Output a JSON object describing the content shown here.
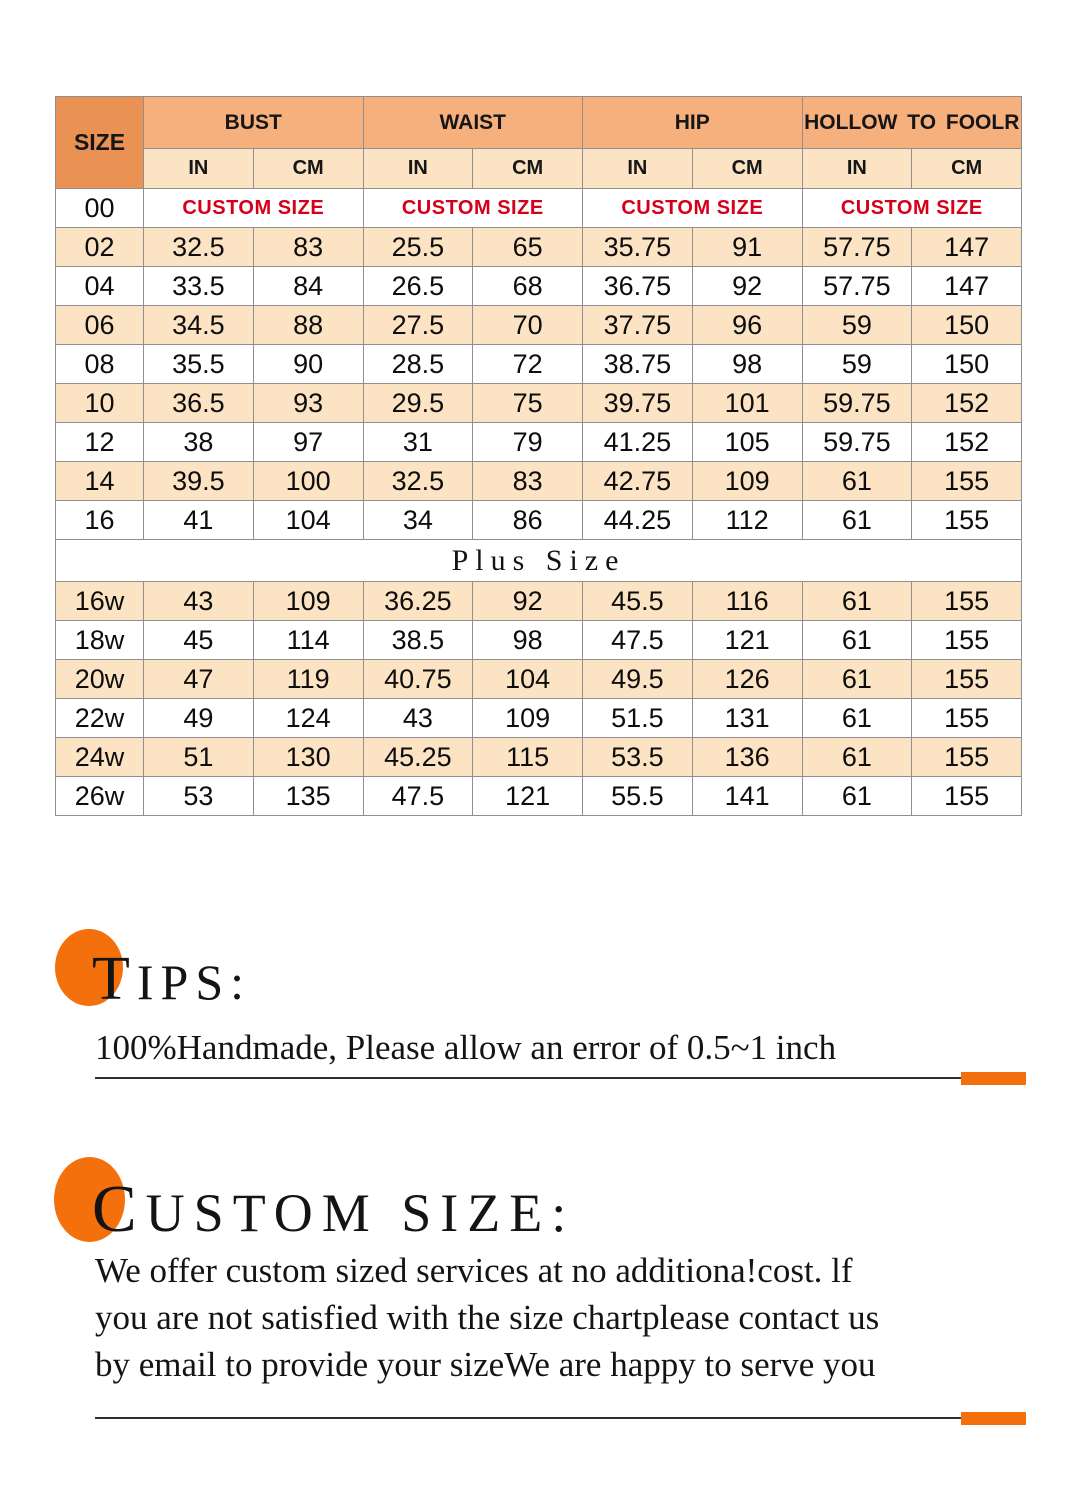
{
  "size_chart": {
    "size_label": "SIZE",
    "groups": [
      "BUST",
      "WAIST",
      "HIP",
      "HOLLOW TO FOOLR"
    ],
    "units": [
      "IN",
      "CM"
    ],
    "custom_size_label": "CUSTOM SIZE",
    "plus_size_label": "Plus Size",
    "rows_regular": [
      {
        "size": "00",
        "custom": true
      },
      {
        "size": "02",
        "values": [
          "32.5",
          "83",
          "25.5",
          "65",
          "35.75",
          "91",
          "57.75",
          "147"
        ]
      },
      {
        "size": "04",
        "values": [
          "33.5",
          "84",
          "26.5",
          "68",
          "36.75",
          "92",
          "57.75",
          "147"
        ]
      },
      {
        "size": "06",
        "values": [
          "34.5",
          "88",
          "27.5",
          "70",
          "37.75",
          "96",
          "59",
          "150"
        ]
      },
      {
        "size": "08",
        "values": [
          "35.5",
          "90",
          "28.5",
          "72",
          "38.75",
          "98",
          "59",
          "150"
        ]
      },
      {
        "size": "10",
        "values": [
          "36.5",
          "93",
          "29.5",
          "75",
          "39.75",
          "101",
          "59.75",
          "152"
        ]
      },
      {
        "size": "12",
        "values": [
          "38",
          "97",
          "31",
          "79",
          "41.25",
          "105",
          "59.75",
          "152"
        ]
      },
      {
        "size": "14",
        "values": [
          "39.5",
          "100",
          "32.5",
          "83",
          "42.75",
          "109",
          "61",
          "155"
        ]
      },
      {
        "size": "16",
        "values": [
          "41",
          "104",
          "34",
          "86",
          "44.25",
          "112",
          "61",
          "155"
        ]
      }
    ],
    "rows_plus": [
      {
        "size": "16w",
        "values": [
          "43",
          "109",
          "36.25",
          "92",
          "45.5",
          "116",
          "61",
          "155"
        ]
      },
      {
        "size": "18w",
        "values": [
          "45",
          "114",
          "38.5",
          "98",
          "47.5",
          "121",
          "61",
          "155"
        ]
      },
      {
        "size": "20w",
        "values": [
          "47",
          "119",
          "40.75",
          "104",
          "49.5",
          "126",
          "61",
          "155"
        ]
      },
      {
        "size": "22w",
        "values": [
          "49",
          "124",
          "43",
          "109",
          "51.5",
          "131",
          "61",
          "155"
        ]
      },
      {
        "size": "24w",
        "values": [
          "51",
          "130",
          "45.25",
          "115",
          "53.5",
          "136",
          "61",
          "155"
        ]
      },
      {
        "size": "26w",
        "values": [
          "53",
          "135",
          "47.5",
          "121",
          "55.5",
          "141",
          "61",
          "155"
        ]
      }
    ]
  },
  "tips": {
    "heading": "TIPS:",
    "body": "100%Handmade, Please allow an error of 0.5~1 inch"
  },
  "custom_size_section": {
    "heading": "CUSTOM SIZE:",
    "lines": [
      "We offer custom sized services at no additiona!cost. lf",
      "you are not satisfied with the size chartplease contact us",
      "by email to provide your sizeWe are happy to serve you"
    ]
  },
  "colors": {
    "header_dark_orange": "#EA9254",
    "header_orange": "#F6B07E",
    "row_peach": "#FBE3C4",
    "custom_red": "#D40019",
    "accent_orange": "#F4700D",
    "border_gray": "#8f8f8f"
  }
}
